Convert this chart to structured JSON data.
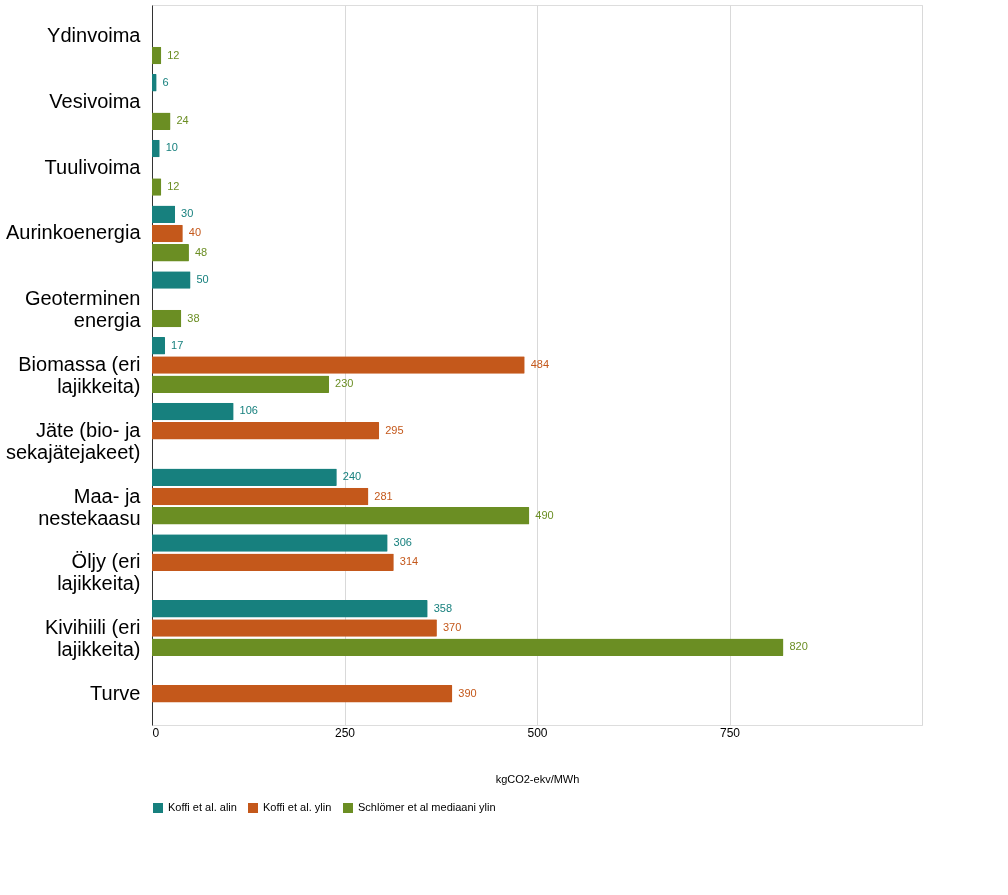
{
  "chart_data": {
    "type": "bar",
    "orientation": "horizontal",
    "xlabel": "kgCO2-ekv/MWh",
    "categories": [
      "Ydinvoima",
      "Vesivoima",
      "Tuulivoima",
      "Aurinkoenergia",
      "Geoterminen energia",
      "Biomassa (eri lajikkeita)",
      "Jäte (bio- ja sekajätejakeet)",
      "Maa- ja nestekaasu",
      "Öljy (eri lajikkeita)",
      "Kivihiili (eri lajikkeita)",
      "Turve"
    ],
    "series": [
      {
        "name": "Koffi et al. alin",
        "color": "#17807e",
        "values": [
          null,
          6,
          10,
          30,
          50,
          17,
          106,
          240,
          306,
          358,
          null
        ]
      },
      {
        "name": "Koffi et al. ylin",
        "color": "#c4581b",
        "values": [
          null,
          null,
          null,
          40,
          null,
          484,
          295,
          281,
          314,
          370,
          390
        ]
      },
      {
        "name": "Schlömer et al mediaani ylin",
        "color": "#6b8e23",
        "values": [
          12,
          24,
          12,
          48,
          38,
          230,
          null,
          490,
          null,
          820,
          null
        ]
      }
    ],
    "xlim": [
      0,
      1000
    ],
    "xticks": [
      0,
      250,
      500,
      750,
      {
        "value": 1000,
        "label": null
      }
    ],
    "grid": "x",
    "legend": "bottom",
    "data_labels": true
  }
}
